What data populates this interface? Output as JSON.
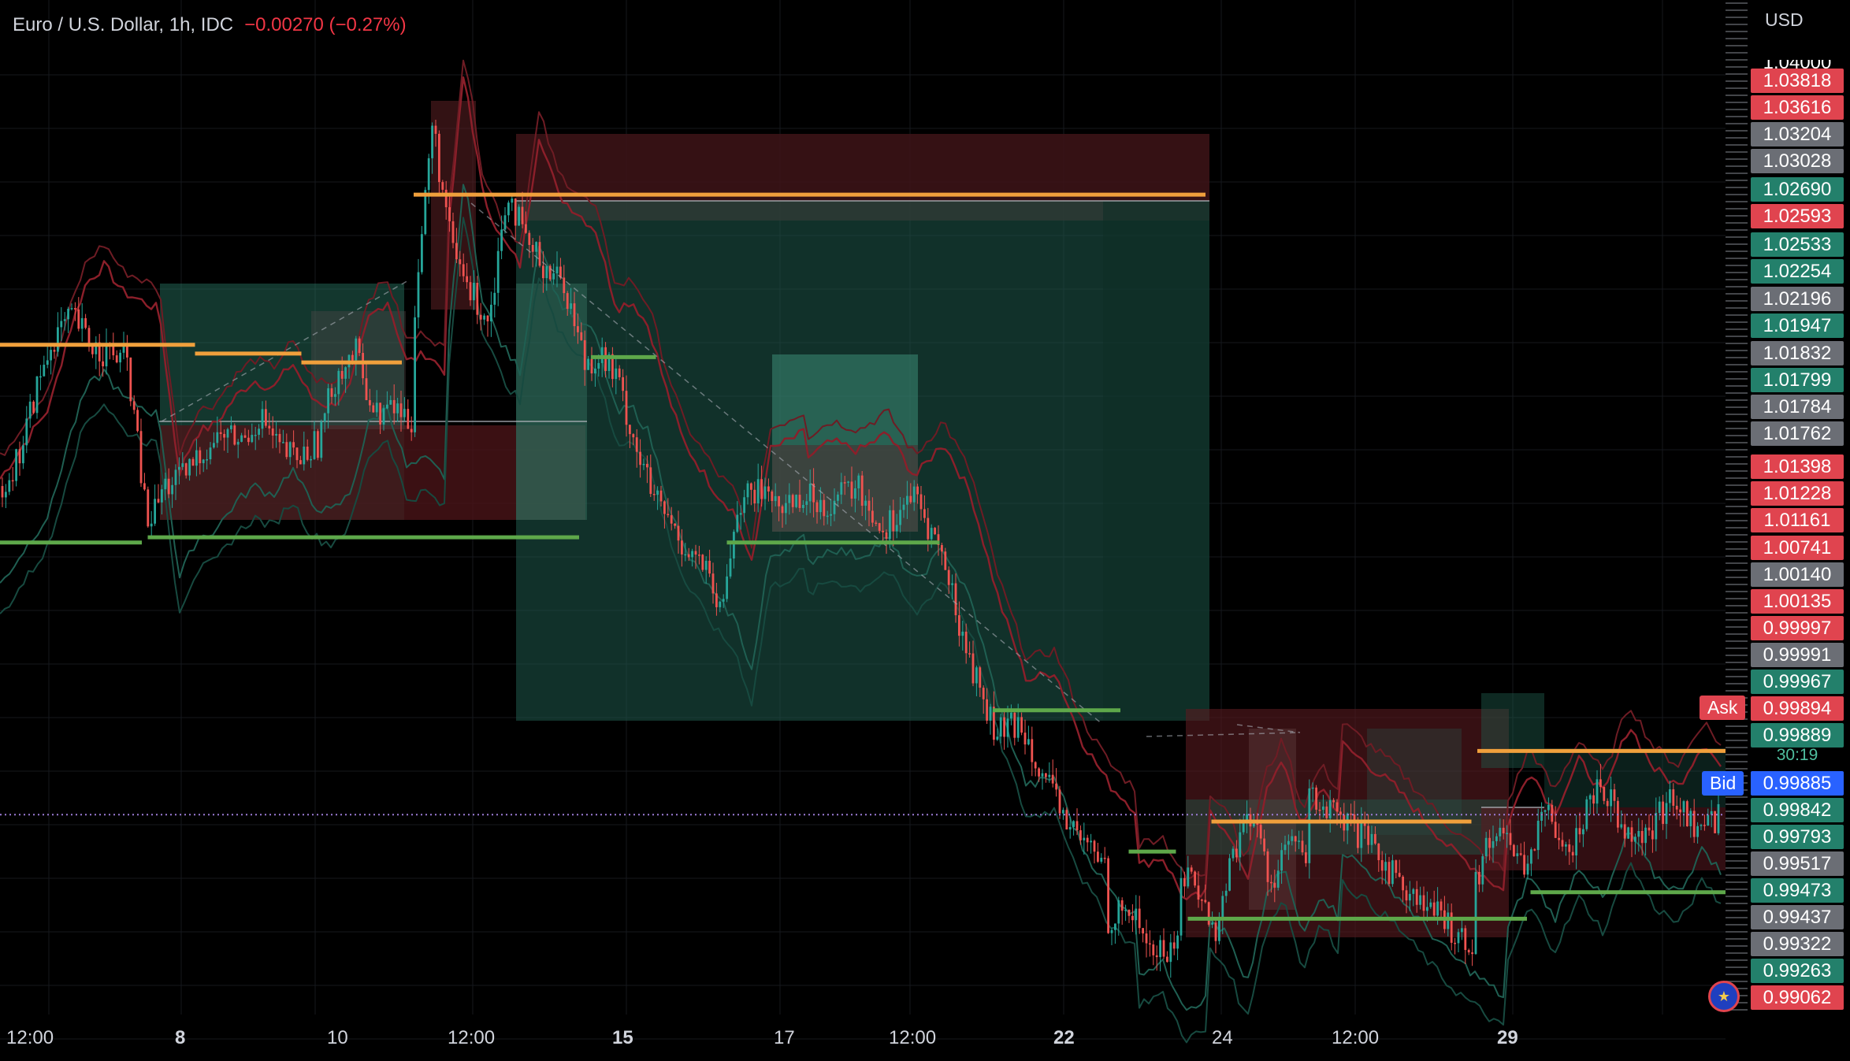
{
  "header": {
    "symbol": "Euro / U.S. Dollar, 1h, IDC",
    "change": "−0.00270 (−0.27%)"
  },
  "currency": "USD",
  "chart_data": {
    "type": "candlestick",
    "instrument": "Euro / U.S. Dollar",
    "interval": "1h",
    "ylim": [
      0.9886,
      1.0419
    ],
    "grid": true,
    "current_price": 0.99889,
    "countdown": "30:19",
    "ask": {
      "label": "Ask",
      "price": "0.99894"
    },
    "bid": {
      "label": "Bid",
      "price": "0.99885"
    },
    "price_scale_partial_top": "1.04000",
    "price_labels": [
      {
        "value": "1.03818",
        "color": "red"
      },
      {
        "value": "1.03616",
        "color": "red"
      },
      {
        "value": "1.03204",
        "color": "grey"
      },
      {
        "value": "1.03028",
        "color": "grey"
      },
      {
        "value": "1.02690",
        "color": "green"
      },
      {
        "value": "1.02593",
        "color": "red"
      },
      {
        "value": "1.02533",
        "color": "green"
      },
      {
        "value": "1.02254",
        "color": "green"
      },
      {
        "value": "1.02196",
        "color": "grey"
      },
      {
        "value": "1.01947",
        "color": "green"
      },
      {
        "value": "1.01832",
        "color": "grey"
      },
      {
        "value": "1.01799",
        "color": "green"
      },
      {
        "value": "1.01784",
        "color": "grey"
      },
      {
        "value": "1.01762",
        "color": "grey"
      },
      {
        "value": "1.01398",
        "color": "red"
      },
      {
        "value": "1.01228",
        "color": "red"
      },
      {
        "value": "1.01161",
        "color": "red"
      },
      {
        "value": "1.00741",
        "color": "red"
      },
      {
        "value": "1.00140",
        "color": "grey"
      },
      {
        "value": "1.00135",
        "color": "red"
      },
      {
        "value": "0.99997",
        "color": "red"
      },
      {
        "value": "0.99991",
        "color": "grey"
      },
      {
        "value": "0.99967",
        "color": "green"
      },
      {
        "value": "0.99894",
        "color": "red"
      },
      {
        "value": "0.99889",
        "color": "green"
      },
      {
        "value": "0.99885",
        "color": "blue"
      },
      {
        "value": "0.99842",
        "color": "green"
      },
      {
        "value": "0.99793",
        "color": "green"
      },
      {
        "value": "0.99517",
        "color": "grey"
      },
      {
        "value": "0.99473",
        "color": "green"
      },
      {
        "value": "0.99437",
        "color": "grey"
      },
      {
        "value": "0.99322",
        "color": "grey"
      },
      {
        "value": "0.99263",
        "color": "green"
      },
      {
        "value": "0.99062",
        "color": "red"
      }
    ],
    "x_ticks": [
      {
        "label": "12:00",
        "bold": false
      },
      {
        "label": "8",
        "bold": true
      },
      {
        "label": "10",
        "bold": false
      },
      {
        "label": "12:00",
        "bold": false
      },
      {
        "label": "15",
        "bold": true
      },
      {
        "label": "17",
        "bold": false
      },
      {
        "label": "12:00",
        "bold": false
      },
      {
        "label": "22",
        "bold": true
      },
      {
        "label": "24",
        "bold": false
      },
      {
        "label": "12:00",
        "bold": false
      },
      {
        "label": "29",
        "bold": true
      }
    ],
    "price_path": [
      [
        1.0175,
        1.019,
        1.023,
        1.026,
        1.027,
        1.0255,
        1.025,
        1.0245,
        1.016
      ],
      [
        1.015,
        1.0175,
        1.018,
        1.0195,
        1.0205,
        1.02,
        1.0215,
        1.0195,
        1.019,
        1.02,
        1.024,
        1.025,
        1.0215,
        1.022,
        1.021
      ],
      [
        1.027,
        1.038,
        1.031,
        1.0285,
        1.027,
        1.0345,
        1.031,
        1.03,
        1.029,
        1.025
      ],
      [
        1.0245,
        1.025,
        1.0235,
        1.02,
        1.017,
        1.0155,
        1.014,
        1.013,
        1.01,
        1.0165,
        1.017,
        1.0175
      ],
      [
        1.016,
        1.017,
        1.0165,
        1.0175,
        1.015,
        1.017,
        1.014,
        1.008,
        1.0035,
        1.004,
        1.0,
        0.9975,
        0.996
      ],
      [
        0.993,
        0.9935,
        0.991,
        0.9915
      ],
      [
        0.996,
        0.995,
        0.992,
        0.997,
        0.999,
        0.995,
        0.9975,
        0.996
      ],
      [
        1.0,
        0.9975,
        0.994,
        0.9915
      ],
      [
        0.995,
        0.9985,
        0.996,
        0.999,
        0.997,
        1.001,
        0.9985,
        0.9975,
        1.0,
        0.998,
        0.9989
      ]
    ],
    "orange_levels": [
      {
        "price": 1.0255,
        "from": 0,
        "to": 0.165
      },
      {
        "price": 1.025,
        "from": 0.165,
        "to": 0.255
      },
      {
        "price": 1.0245,
        "from": 0.255,
        "to": 0.34
      },
      {
        "price": 1.034,
        "from": 0.35,
        "to": 1.02
      },
      {
        "price": 0.9985,
        "from": 1.025,
        "to": 1.245
      },
      {
        "price": 1.0025,
        "from": 1.25,
        "to": 1.46
      }
    ],
    "green_levels": [
      {
        "price": 1.0143,
        "from": 0,
        "to": 0.12
      },
      {
        "price": 1.0146,
        "from": 0.125,
        "to": 0.49
      },
      {
        "price": 1.0248,
        "from": 0.5,
        "to": 0.555
      },
      {
        "price": 1.0143,
        "from": 0.615,
        "to": 0.795
      },
      {
        "price": 1.0048,
        "from": 0.84,
        "to": 0.948
      },
      {
        "price": 0.9968,
        "from": 0.955,
        "to": 0.995
      },
      {
        "price": 0.993,
        "from": 1.005,
        "to": 1.292
      },
      {
        "price": 0.9945,
        "from": 1.295,
        "to": 1.46
      }
    ]
  }
}
